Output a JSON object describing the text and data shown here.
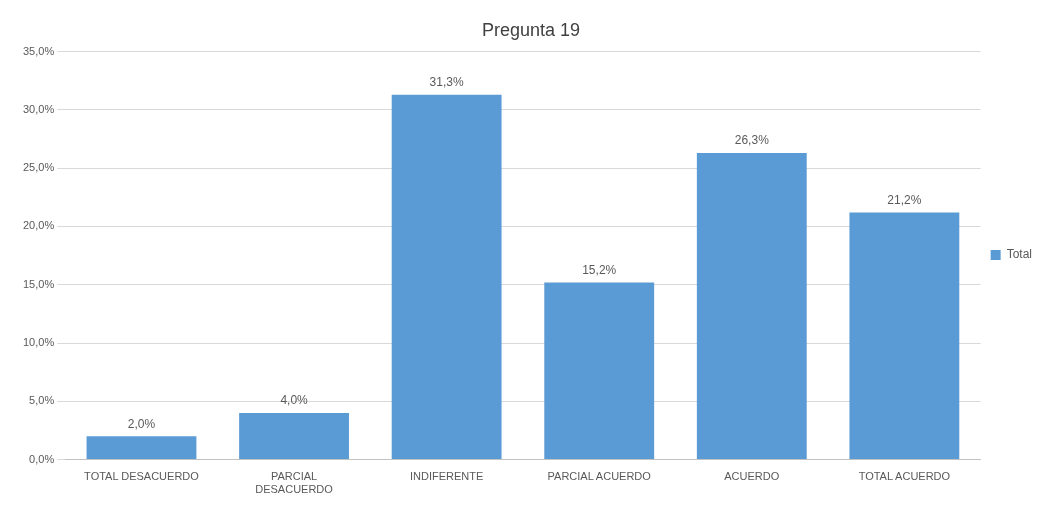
{
  "chart_data": {
    "type": "bar",
    "title": "Pregunta 19",
    "categories": [
      "TOTAL DESACUERDO",
      "PARCIAL DESACUERDO",
      "INDIFERENTE",
      "PARCIAL ACUERDO",
      "ACUERDO",
      "TOTAL ACUERDO"
    ],
    "series": [
      {
        "name": "Total",
        "color": "#5b9bd5",
        "values": [
          2.0,
          4.0,
          31.3,
          15.2,
          26.3,
          21.2
        ],
        "value_labels": [
          "2,0%",
          "4,0%",
          "31,3%",
          "15,2%",
          "26,3%",
          "21,2%"
        ]
      }
    ],
    "ylim": [
      0,
      35
    ],
    "yticks": [
      {
        "value": 0,
        "label": "0,0%"
      },
      {
        "value": 5,
        "label": "5,0%"
      },
      {
        "value": 10,
        "label": "10,0%"
      },
      {
        "value": 15,
        "label": "15,0%"
      },
      {
        "value": 20,
        "label": "20,0%"
      },
      {
        "value": 25,
        "label": "25,0%"
      },
      {
        "value": 30,
        "label": "30,0%"
      },
      {
        "value": 35,
        "label": "35,0%"
      }
    ],
    "grid": "y",
    "legend": "right"
  }
}
